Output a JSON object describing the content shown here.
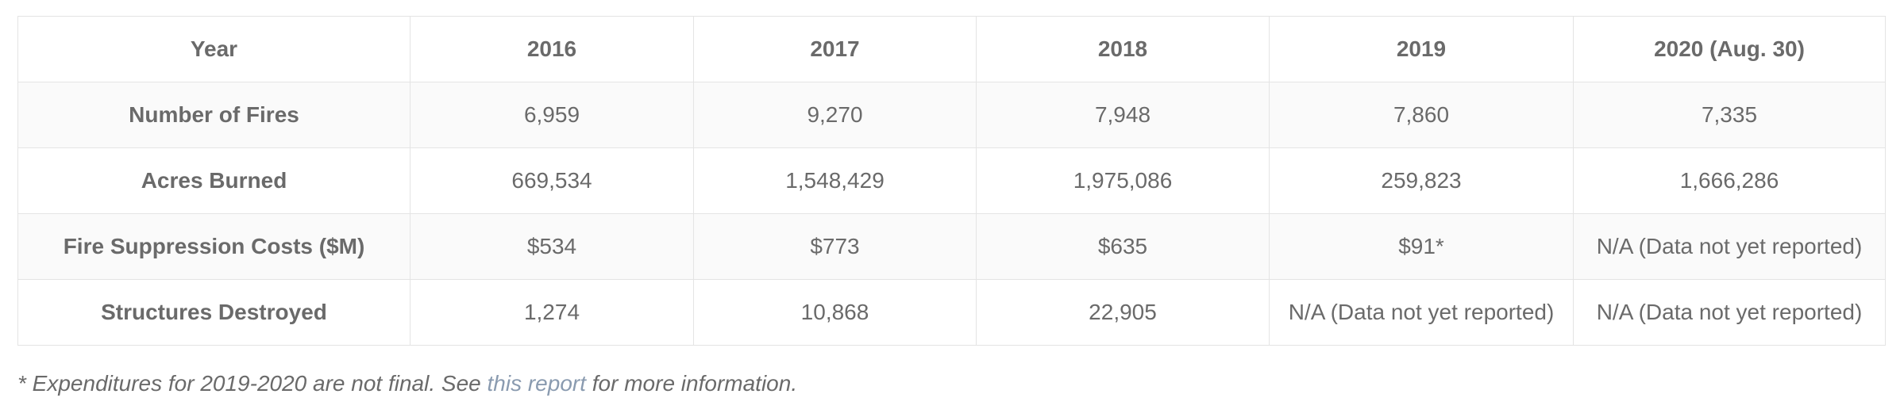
{
  "table": {
    "header": [
      "Year",
      "2016",
      "2017",
      "2018",
      "2019",
      "2020 (Aug. 30)"
    ],
    "rows": [
      [
        "Number of Fires",
        "6,959",
        "9,270",
        "7,948",
        "7,860",
        "7,335"
      ],
      [
        "Acres Burned",
        "669,534",
        "1,548,429",
        "1,975,086",
        "259,823",
        "1,666,286"
      ],
      [
        "Fire Suppression Costs ($M)",
        "$534",
        "$773",
        "$635",
        "$91*",
        "N/A (Data not yet reported)"
      ],
      [
        "Structures Destroyed",
        "1,274",
        "10,868",
        "22,905",
        "N/A (Data not yet reported)",
        "N/A (Data not yet reported)"
      ]
    ]
  },
  "footnote": {
    "before": "* Expenditures for 2019-2020 are not final. See ",
    "link": "this report",
    "after": " for more information."
  }
}
